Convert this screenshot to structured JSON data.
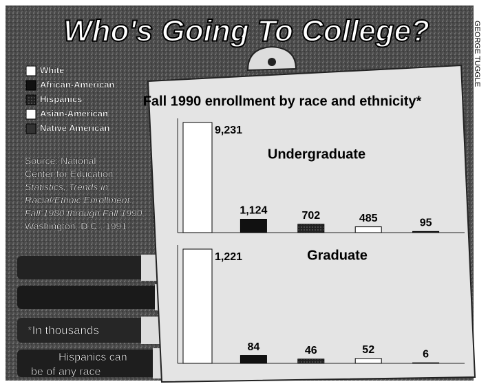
{
  "title": "Who's Going To College?",
  "credit": "GEORGE TUGGLE",
  "heading": "Fall 1990 enrollment by race and ethnicity*",
  "source": [
    "Source: National",
    "Center for Education",
    "Statistics, Trends in",
    "Racial/Ethnic Enrollment:",
    "Fall 1980 through Fall 1990,",
    "Washington, D.C., 1991"
  ],
  "footnotes": [
    "*In thousands",
    "Hispanics can",
    "be of any race"
  ],
  "chart_data": [
    {
      "type": "bar",
      "title": "Undergraduate",
      "categories": [
        "White",
        "African-American",
        "Hispanics",
        "Asian-American",
        "Native American"
      ],
      "values": [
        9231,
        1124,
        702,
        485,
        95
      ],
      "value_labels": [
        "9,231",
        "1,124",
        "702",
        "485",
        "95"
      ],
      "colors": [
        "#ffffff",
        "#111111",
        "#2a2a2a",
        "#ffffff",
        "#333333"
      ]
    },
    {
      "type": "bar",
      "title": "Graduate",
      "categories": [
        "White",
        "African-American",
        "Hispanics",
        "Asian-American",
        "Native American"
      ],
      "values": [
        1221,
        84,
        46,
        52,
        6
      ],
      "value_labels": [
        "1,221",
        "84",
        "46",
        "52",
        "6"
      ],
      "colors": [
        "#ffffff",
        "#111111",
        "#2a2a2a",
        "#ffffff",
        "#333333"
      ]
    }
  ]
}
